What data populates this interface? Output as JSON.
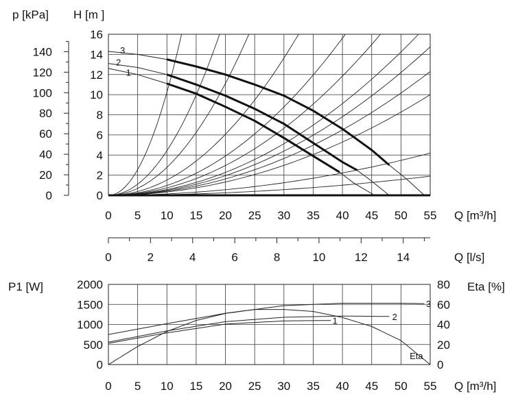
{
  "chart_data": [
    {
      "type": "line",
      "title": "",
      "x_unit_label": "Q [m³/h]",
      "x_ticks": [
        0,
        5,
        10,
        15,
        20,
        25,
        30,
        35,
        40,
        45,
        50,
        55
      ],
      "xlim": [
        0,
        55
      ],
      "ylabel_left": "H [m ]",
      "ylabel_pressure": "p [kPa]",
      "ylim": [
        0,
        16
      ],
      "y_ticks": [
        0,
        2,
        4,
        6,
        8,
        10,
        12,
        14,
        16
      ],
      "p_ticks": [
        0,
        20,
        40,
        60,
        80,
        100,
        120,
        140
      ],
      "grid": true,
      "series": [
        {
          "name": "3",
          "x": [
            0,
            5,
            10,
            15,
            20,
            25,
            30,
            35,
            40,
            45,
            48
          ],
          "values": [
            14.3,
            14.0,
            13.5,
            12.8,
            12.0,
            11.0,
            9.9,
            8.4,
            6.6,
            4.5,
            3.0
          ]
        },
        {
          "name": "2",
          "x": [
            0,
            5,
            10,
            15,
            20,
            25,
            30,
            35,
            40,
            42.5
          ],
          "values": [
            13.1,
            12.7,
            12.0,
            11.0,
            9.9,
            8.6,
            7.1,
            5.2,
            3.3,
            2.5
          ]
        },
        {
          "name": "1",
          "x": [
            0,
            5,
            10,
            15,
            20,
            25,
            30,
            35,
            39.5
          ],
          "values": [
            12.6,
            12.0,
            11.1,
            10.1,
            8.8,
            7.4,
            5.7,
            3.9,
            2.3
          ]
        }
      ],
      "extension_curves": [
        {
          "x": [
            39.5,
            42,
            45.5
          ],
          "values": [
            2.3,
            1.2,
            0
          ]
        },
        {
          "x": [
            42.5,
            45,
            48
          ],
          "values": [
            2.5,
            1.4,
            0
          ]
        },
        {
          "x": [
            48,
            51,
            54
          ],
          "values": [
            3.0,
            1.6,
            0
          ]
        }
      ],
      "system_curve_top_x": [
        12.5,
        19,
        24,
        32.5,
        40.5,
        46.5,
        53
      ],
      "system_curve_flows_at_55": [
        30.5,
        37.5,
        45
      ],
      "line_labels": [
        "3",
        "2",
        "1"
      ]
    },
    {
      "type": "axis",
      "x_unit_label": "Q [l/s]",
      "x_ticks": [
        0,
        2,
        4,
        6,
        8,
        10,
        12,
        14
      ],
      "xlim": [
        0,
        15.28
      ]
    },
    {
      "type": "line",
      "title": "",
      "x_unit_label": "Q [m³/h]",
      "x_ticks": [
        0,
        5,
        10,
        15,
        20,
        25,
        30,
        35,
        40,
        45,
        50,
        55
      ],
      "xlim": [
        0,
        55
      ],
      "ylabel_left": "P1 [W]",
      "ylim": [
        0,
        2000
      ],
      "y_ticks": [
        0,
        500,
        1000,
        1500,
        2000
      ],
      "ylabel_right": "Eta [%]",
      "y2lim": [
        0,
        80
      ],
      "y2_ticks": [
        0,
        20,
        40,
        60,
        80
      ],
      "grid": true,
      "series": [
        {
          "name": "3",
          "x": [
            0,
            10,
            20,
            30,
            40,
            50,
            54
          ],
          "values": [
            750,
            1020,
            1280,
            1470,
            1530,
            1530,
            1520
          ]
        },
        {
          "name": "2",
          "x": [
            0,
            10,
            20,
            30,
            40,
            48
          ],
          "values": [
            560,
            840,
            1070,
            1180,
            1210,
            1200
          ]
        },
        {
          "name": "1",
          "x": [
            0,
            10,
            20,
            30,
            38
          ],
          "values": [
            530,
            790,
            1010,
            1090,
            1100
          ]
        },
        {
          "name": "Eta",
          "axis": "right",
          "x": [
            0,
            5,
            10,
            15,
            20,
            25,
            30,
            35,
            40,
            45,
            50,
            55
          ],
          "values": [
            0,
            18,
            33,
            44,
            51,
            55,
            55,
            53,
            47,
            38,
            24,
            0
          ]
        }
      ],
      "line_labels": [
        "3",
        "2",
        "1",
        "Eta"
      ]
    }
  ]
}
